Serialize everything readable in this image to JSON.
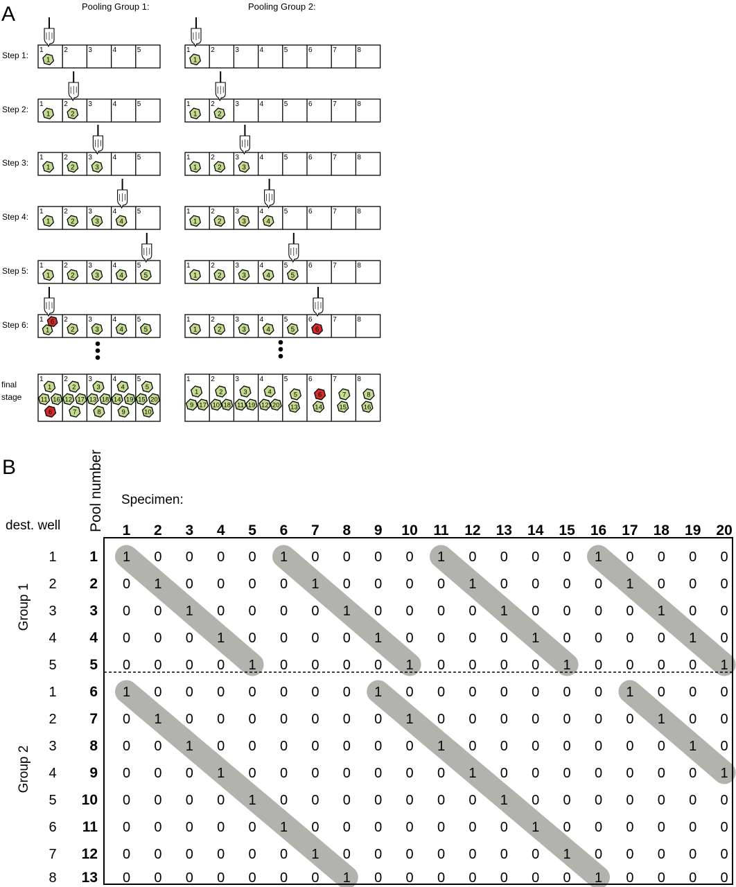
{
  "panel_a": {
    "letter": "A",
    "group1_title": "Pooling Group 1:",
    "group2_title": "Pooling Group 2:",
    "group1_wells": 5,
    "group2_wells": 8,
    "colors": {
      "specimen": "#c5dc8f",
      "positive": "#d42b2b",
      "stroke": "#000000",
      "pipette": "#ffffff"
    },
    "steps": [
      {
        "label": "Step 1:",
        "g1": [
          [
            1
          ],
          [],
          [],
          [],
          []
        ],
        "g2": [
          [
            1
          ],
          [],
          [],
          [],
          [],
          [],
          [],
          []
        ],
        "pip1": 1,
        "pip2": 1,
        "red1": [],
        "red2": []
      },
      {
        "label": "Step 2:",
        "g1": [
          [
            1
          ],
          [
            2
          ],
          [],
          [],
          []
        ],
        "g2": [
          [
            1
          ],
          [
            2
          ],
          [],
          [],
          [],
          [],
          [],
          []
        ],
        "pip1": 2,
        "pip2": 2,
        "red1": [],
        "red2": []
      },
      {
        "label": "Step 3:",
        "g1": [
          [
            1
          ],
          [
            2
          ],
          [
            3
          ],
          [],
          []
        ],
        "g2": [
          [
            1
          ],
          [
            2
          ],
          [
            3
          ],
          [],
          [],
          [],
          [],
          []
        ],
        "pip1": 3,
        "pip2": 3,
        "red1": [],
        "red2": []
      },
      {
        "label": "Step 4:",
        "g1": [
          [
            1
          ],
          [
            2
          ],
          [
            3
          ],
          [
            4
          ],
          []
        ],
        "g2": [
          [
            1
          ],
          [
            2
          ],
          [
            3
          ],
          [
            4
          ],
          [],
          [],
          [],
          []
        ],
        "pip1": 4,
        "pip2": 4,
        "red1": [],
        "red2": []
      },
      {
        "label": "Step 5:",
        "g1": [
          [
            1
          ],
          [
            2
          ],
          [
            3
          ],
          [
            4
          ],
          [
            5
          ]
        ],
        "g2": [
          [
            1
          ],
          [
            2
          ],
          [
            3
          ],
          [
            4
          ],
          [
            5
          ],
          [],
          [],
          []
        ],
        "pip1": 5,
        "pip2": 5,
        "red1": [],
        "red2": []
      },
      {
        "label": "Step 6:",
        "g1": [
          [
            6,
            1
          ],
          [
            2
          ],
          [
            3
          ],
          [
            4
          ],
          [
            5
          ]
        ],
        "g2": [
          [
            1
          ],
          [
            2
          ],
          [
            3
          ],
          [
            4
          ],
          [
            5
          ],
          [
            6
          ],
          [],
          []
        ],
        "pip1": 1,
        "pip2": 6,
        "red1": [
          6
        ],
        "red2": [
          6
        ]
      }
    ],
    "final": {
      "label_line1": "final",
      "label_line2": "stage",
      "g1": [
        [
          1,
          11,
          16,
          6
        ],
        [
          2,
          12,
          17,
          7
        ],
        [
          3,
          13,
          18,
          8
        ],
        [
          4,
          14,
          19,
          9
        ],
        [
          5,
          15,
          20,
          10
        ]
      ],
      "g2": [
        [
          1,
          9,
          17
        ],
        [
          2,
          10,
          18
        ],
        [
          3,
          11,
          19
        ],
        [
          4,
          12,
          20
        ],
        [
          5,
          13
        ],
        [
          6,
          14
        ],
        [
          7,
          15
        ],
        [
          8,
          16
        ]
      ],
      "red1": [
        6
      ],
      "red2": [
        6
      ]
    }
  },
  "panel_b": {
    "letter": "B",
    "dest_well_label": "dest. well",
    "pool_number_label": "Pool number",
    "specimen_label": "Specimen:",
    "group1_label": "Group 1",
    "group2_label": "Group 2",
    "specimens": [
      "1",
      "2",
      "3",
      "4",
      "5",
      "6",
      "7",
      "8",
      "9",
      "10",
      "11",
      "12",
      "13",
      "14",
      "15",
      "16",
      "17",
      "18",
      "19",
      "20"
    ],
    "rows": [
      {
        "well": "1",
        "pool": "1",
        "group": 1,
        "values": [
          1,
          0,
          0,
          0,
          0,
          1,
          0,
          0,
          0,
          0,
          1,
          0,
          0,
          0,
          0,
          1,
          0,
          0,
          0,
          0
        ]
      },
      {
        "well": "2",
        "pool": "2",
        "group": 1,
        "values": [
          0,
          1,
          0,
          0,
          0,
          0,
          1,
          0,
          0,
          0,
          0,
          1,
          0,
          0,
          0,
          0,
          1,
          0,
          0,
          0
        ]
      },
      {
        "well": "3",
        "pool": "3",
        "group": 1,
        "values": [
          0,
          0,
          1,
          0,
          0,
          0,
          0,
          1,
          0,
          0,
          0,
          0,
          1,
          0,
          0,
          0,
          0,
          1,
          0,
          0
        ]
      },
      {
        "well": "4",
        "pool": "4",
        "group": 1,
        "values": [
          0,
          0,
          0,
          1,
          0,
          0,
          0,
          0,
          1,
          0,
          0,
          0,
          0,
          1,
          0,
          0,
          0,
          0,
          1,
          0
        ]
      },
      {
        "well": "5",
        "pool": "5",
        "group": 1,
        "values": [
          0,
          0,
          0,
          0,
          1,
          0,
          0,
          0,
          0,
          1,
          0,
          0,
          0,
          0,
          1,
          0,
          0,
          0,
          0,
          1
        ]
      },
      {
        "well": "1",
        "pool": "6",
        "group": 2,
        "values": [
          1,
          0,
          0,
          0,
          0,
          0,
          0,
          0,
          1,
          0,
          0,
          0,
          0,
          0,
          0,
          0,
          1,
          0,
          0,
          0
        ]
      },
      {
        "well": "2",
        "pool": "7",
        "group": 2,
        "values": [
          0,
          1,
          0,
          0,
          0,
          0,
          0,
          0,
          0,
          1,
          0,
          0,
          0,
          0,
          0,
          0,
          0,
          1,
          0,
          0
        ]
      },
      {
        "well": "3",
        "pool": "8",
        "group": 2,
        "values": [
          0,
          0,
          1,
          0,
          0,
          0,
          0,
          0,
          0,
          0,
          1,
          0,
          0,
          0,
          0,
          0,
          0,
          0,
          1,
          0
        ]
      },
      {
        "well": "4",
        "pool": "9",
        "group": 2,
        "values": [
          0,
          0,
          0,
          1,
          0,
          0,
          0,
          0,
          0,
          0,
          0,
          1,
          0,
          0,
          0,
          0,
          0,
          0,
          0,
          1
        ]
      },
      {
        "well": "5",
        "pool": "10",
        "group": 2,
        "values": [
          0,
          0,
          0,
          0,
          1,
          0,
          0,
          0,
          0,
          0,
          0,
          0,
          1,
          0,
          0,
          0,
          0,
          0,
          0,
          0
        ]
      },
      {
        "well": "6",
        "pool": "11",
        "group": 2,
        "values": [
          0,
          0,
          0,
          0,
          0,
          1,
          0,
          0,
          0,
          0,
          0,
          0,
          0,
          1,
          0,
          0,
          0,
          0,
          0,
          0
        ]
      },
      {
        "well": "7",
        "pool": "12",
        "group": 2,
        "values": [
          0,
          0,
          0,
          0,
          0,
          0,
          1,
          0,
          0,
          0,
          0,
          0,
          0,
          0,
          1,
          0,
          0,
          0,
          0,
          0
        ]
      },
      {
        "well": "8",
        "pool": "13",
        "group": 2,
        "values": [
          0,
          0,
          0,
          0,
          0,
          0,
          0,
          1,
          0,
          0,
          0,
          0,
          0,
          0,
          0,
          1,
          0,
          0,
          0,
          0
        ]
      }
    ],
    "colors": {
      "highlight": "#b3b3ad",
      "text": "#000000"
    }
  }
}
